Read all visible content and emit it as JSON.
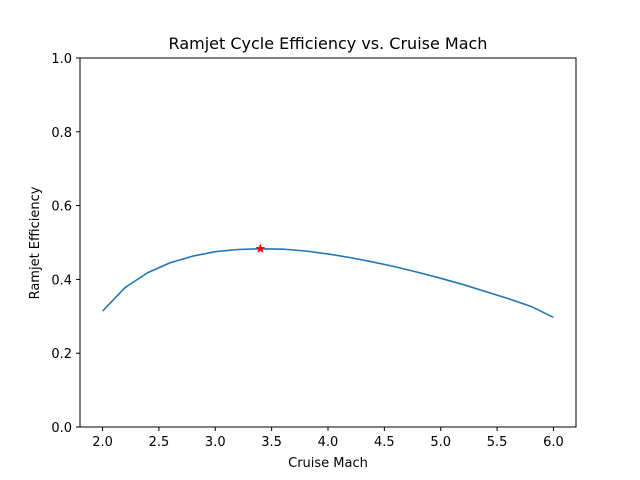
{
  "chart_data": {
    "type": "line",
    "title": "Ramjet Cycle Efficiency vs. Cruise Mach",
    "xlabel": "Cruise Mach",
    "ylabel": "Ramjet Efficiency",
    "xlim": [
      1.8,
      6.2
    ],
    "ylim": [
      0.0,
      1.0
    ],
    "xticks": [
      "2.0",
      "2.5",
      "3.0",
      "3.5",
      "4.0",
      "4.5",
      "5.0",
      "5.5",
      "6.0"
    ],
    "yticks": [
      "0.0",
      "0.2",
      "0.4",
      "0.6",
      "0.8",
      "1.0"
    ],
    "grid": false,
    "series": [
      {
        "color": "#1f77b4",
        "x": [
          2.0,
          2.2,
          2.4,
          2.6,
          2.8,
          3.0,
          3.2,
          3.4,
          3.6,
          3.8,
          4.0,
          4.2,
          4.4,
          4.6,
          4.8,
          5.0,
          5.2,
          5.4,
          5.6,
          5.8,
          6.0
        ],
        "y": [
          0.314,
          0.378,
          0.418,
          0.445,
          0.463,
          0.475,
          0.481,
          0.483,
          0.482,
          0.477,
          0.469,
          0.459,
          0.447,
          0.434,
          0.419,
          0.403,
          0.386,
          0.367,
          0.348,
          0.327,
          0.297
        ]
      }
    ],
    "markers": [
      {
        "x": 3.4,
        "y": 0.483,
        "shape": "star",
        "color": "#ff0000"
      }
    ]
  }
}
